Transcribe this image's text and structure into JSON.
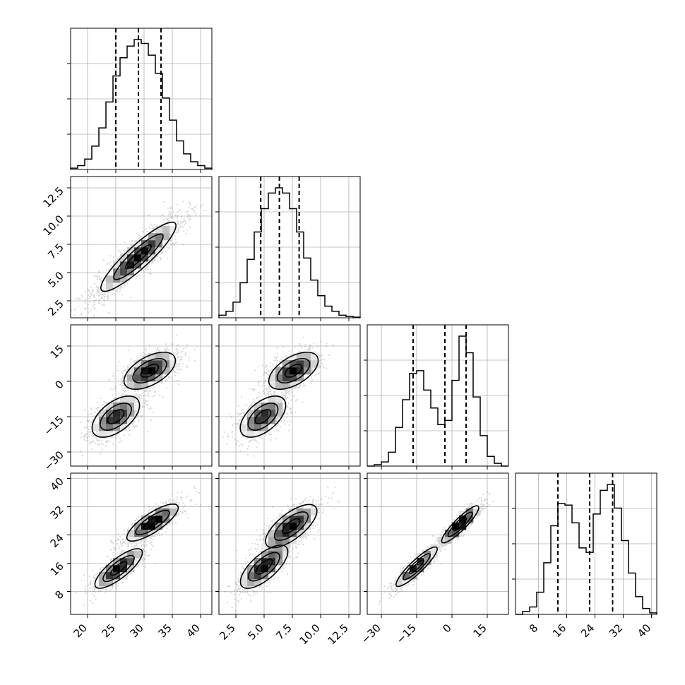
{
  "figure": {
    "type": "corner-plot",
    "background": "#ffffff",
    "foreground": "#000000",
    "grid_color": "#b0b0b0"
  },
  "chart_data": {
    "type": "corner",
    "title": "",
    "n_params": 4,
    "param_labels": [
      "",
      "",
      "",
      ""
    ],
    "ranges": [
      [
        17,
        42
      ],
      [
        1.0,
        13.5
      ],
      [
        -36,
        24
      ],
      [
        1.5,
        41.5
      ]
    ],
    "ticks": [
      {
        "values": [
          20,
          25,
          30,
          35,
          40
        ],
        "labels": [
          "20",
          "25",
          "30",
          "35",
          "40"
        ]
      },
      {
        "values": [
          2.5,
          5.0,
          7.5,
          10.0,
          12.5
        ],
        "labels": [
          "2.5",
          "5.0",
          "7.5",
          "10.0",
          "12.5"
        ]
      },
      {
        "values": [
          -30,
          -15,
          0,
          15
        ],
        "labels": [
          "−30",
          "−15",
          "0",
          "15"
        ]
      },
      {
        "values": [
          8,
          16,
          24,
          32,
          40
        ],
        "labels": [
          "8",
          "16",
          "24",
          "32",
          "40"
        ]
      }
    ],
    "quantile_lines": [
      [
        25,
        29,
        33
      ],
      [
        4.7,
        6.35,
        8.1
      ],
      [
        -16.5,
        -3,
        6
      ],
      [
        13.5,
        22.5,
        29
      ]
    ],
    "histograms": [
      {
        "bin_edges": [
          17,
          18.25,
          19.5,
          20.75,
          22,
          23.25,
          24.5,
          25.75,
          27,
          28.25,
          29.5,
          30.75,
          32,
          33.25,
          34.5,
          35.75,
          37,
          38.25,
          39.5,
          40.75,
          42
        ],
        "counts": [
          0.01,
          0.03,
          0.08,
          0.18,
          0.32,
          0.52,
          0.72,
          0.86,
          0.95,
          1.0,
          0.97,
          0.88,
          0.74,
          0.55,
          0.38,
          0.22,
          0.12,
          0.06,
          0.03,
          0.01
        ]
      },
      {
        "bin_edges": [
          1.0,
          1.625,
          2.25,
          2.875,
          3.5,
          4.125,
          4.75,
          5.375,
          6.0,
          6.625,
          7.25,
          7.875,
          8.5,
          9.125,
          9.75,
          10.375,
          11.0,
          11.625,
          12.25,
          12.875,
          13.5
        ],
        "counts": [
          0.02,
          0.05,
          0.12,
          0.27,
          0.45,
          0.66,
          0.84,
          0.96,
          1.0,
          0.96,
          0.84,
          0.66,
          0.46,
          0.29,
          0.17,
          0.09,
          0.05,
          0.02,
          0.01,
          0.005
        ]
      },
      {
        "bin_edges": [
          -36,
          -33,
          -30,
          -27,
          -24,
          -21,
          -18,
          -15,
          -12,
          -9,
          -6,
          -3,
          0,
          3,
          6,
          9,
          12,
          15,
          18,
          21,
          24
        ],
        "counts": [
          0.0,
          0.01,
          0.03,
          0.1,
          0.28,
          0.48,
          0.67,
          0.69,
          0.55,
          0.42,
          0.3,
          0.33,
          0.62,
          0.94,
          0.82,
          0.5,
          0.22,
          0.07,
          0.02,
          0.0
        ]
      },
      {
        "bin_edges": [
          1.5,
          3.5,
          5.5,
          7.5,
          9.5,
          11.5,
          13.5,
          15.5,
          17.5,
          19.5,
          21.5,
          23.5,
          25.5,
          27.5,
          29.5,
          31.5,
          33.5,
          35.5,
          37.5,
          39.5,
          41.5
        ],
        "counts": [
          0.0,
          0.02,
          0.05,
          0.15,
          0.35,
          0.6,
          0.75,
          0.74,
          0.62,
          0.45,
          0.42,
          0.68,
          0.84,
          0.88,
          0.72,
          0.5,
          0.28,
          0.12,
          0.04,
          0.01
        ]
      }
    ],
    "scatter_2d": [
      {
        "x_param": 0,
        "y_param": 1,
        "modes": [
          {
            "weight": 1.0,
            "mean": [
              29,
              6.4
            ],
            "sd": [
              3.8,
              1.75
            ],
            "rho": 0.9
          }
        ]
      },
      {
        "x_param": 0,
        "y_param": 2,
        "modes": [
          {
            "weight": 0.52,
            "mean": [
              31,
              4.5
            ],
            "sd": [
              2.6,
              4.5
            ],
            "rho": 0.55
          },
          {
            "weight": 0.48,
            "mean": [
              25,
              -15
            ],
            "sd": [
              2.4,
              5.0
            ],
            "rho": 0.55
          }
        ]
      },
      {
        "x_param": 1,
        "y_param": 2,
        "modes": [
          {
            "weight": 0.52,
            "mean": [
              7.6,
              4.5
            ],
            "sd": [
              1.25,
              4.5
            ],
            "rho": 0.55
          },
          {
            "weight": 0.48,
            "mean": [
              4.9,
              -15
            ],
            "sd": [
              1.15,
              5.0
            ],
            "rho": 0.55
          }
        ]
      },
      {
        "x_param": 0,
        "y_param": 3,
        "modes": [
          {
            "weight": 0.52,
            "mean": [
              31.5,
              27.5
            ],
            "sd": [
              2.6,
              3.0
            ],
            "rho": 0.8
          },
          {
            "weight": 0.48,
            "mean": [
              25.5,
              14.5
            ],
            "sd": [
              2.4,
              3.2
            ],
            "rho": 0.8
          }
        ]
      },
      {
        "x_param": 1,
        "y_param": 3,
        "modes": [
          {
            "weight": 0.52,
            "mean": [
              7.4,
              26.5
            ],
            "sd": [
              1.3,
              3.5
            ],
            "rho": 0.7
          },
          {
            "weight": 0.48,
            "mean": [
              5.0,
              15.0
            ],
            "sd": [
              1.2,
              3.5
            ],
            "rho": 0.7
          }
        ]
      },
      {
        "x_param": 2,
        "y_param": 3,
        "modes": [
          {
            "weight": 0.52,
            "mean": [
              3.5,
              27
            ],
            "sd": [
              4.5,
              3.0
            ],
            "rho": 0.9
          },
          {
            "weight": 0.48,
            "mean": [
              -15,
              15
            ],
            "sd": [
              5.0,
              3.2
            ],
            "rho": 0.9
          }
        ]
      }
    ]
  }
}
